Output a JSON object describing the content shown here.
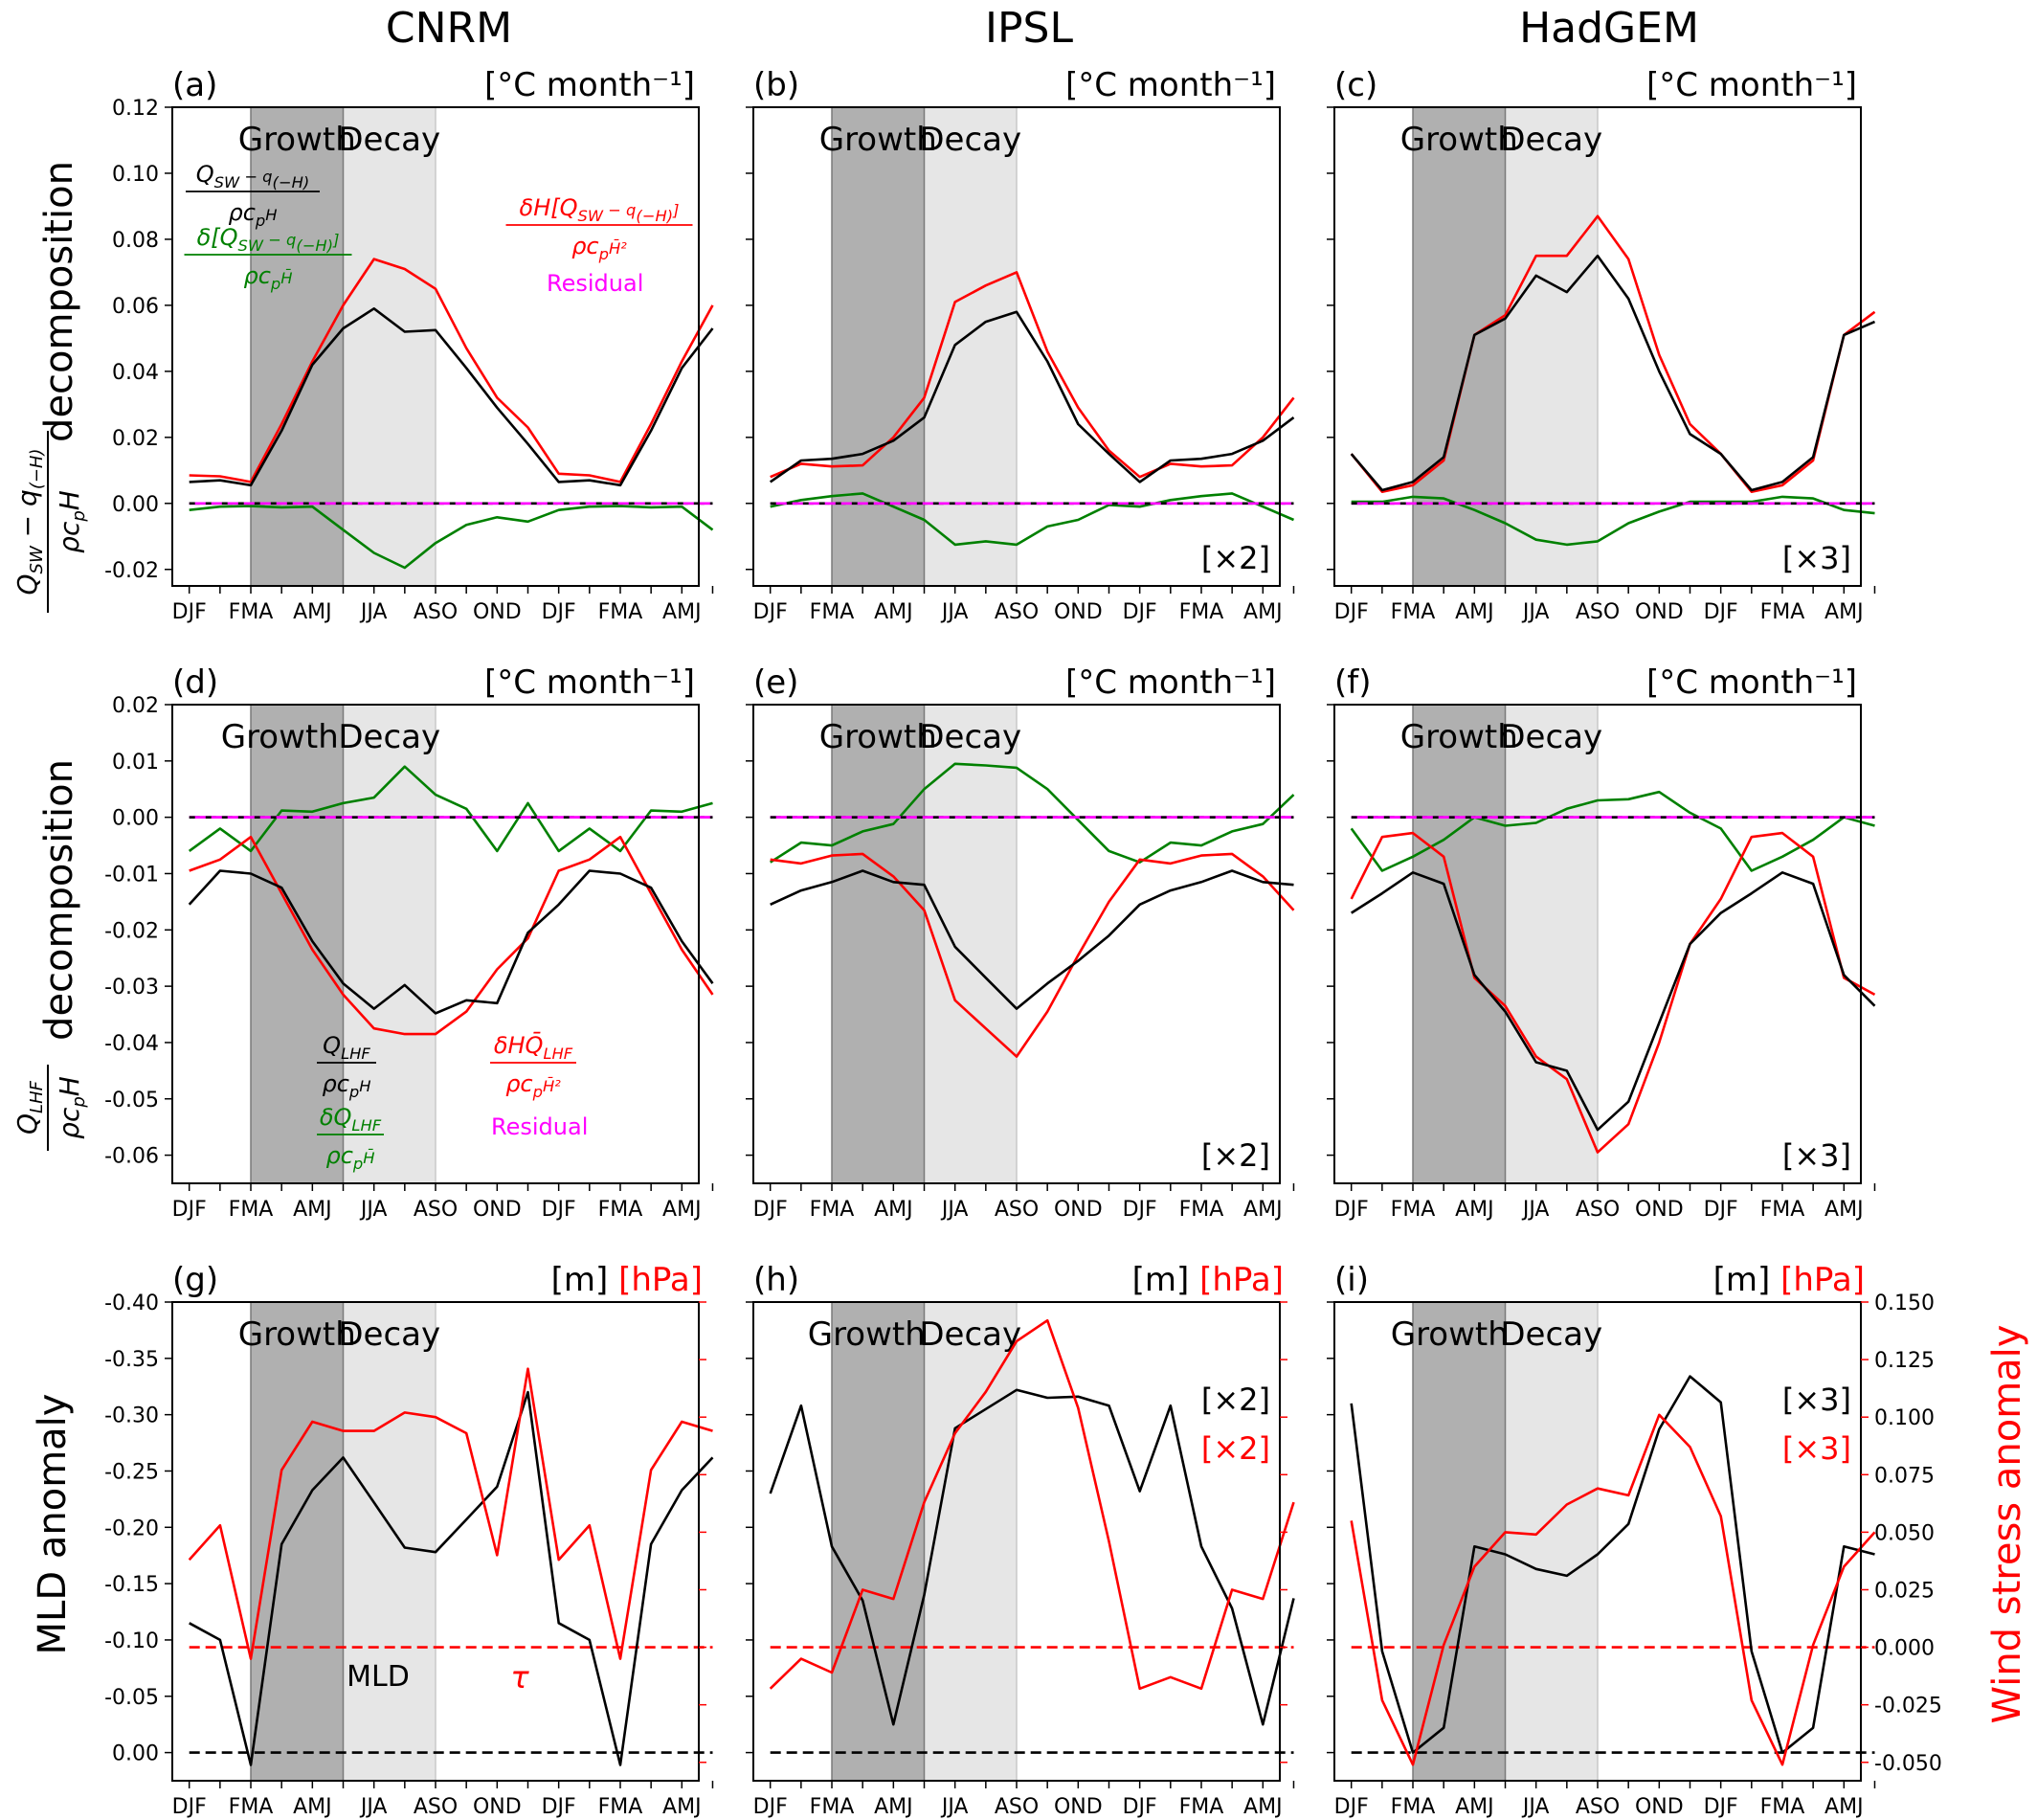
{
  "columns": [
    "CNRM",
    "IPSL",
    "HadGEM"
  ],
  "row_ylabels": {
    "row1": "decomposition",
    "row2": "decomposition",
    "row3_left": "MLD anomaly",
    "row3_right": "Wind stress anomaly"
  },
  "row_ylabel_formulas": {
    "row1": "(Q_SW − q_(−H)) / ρc_pH",
    "row2": "Q_LHF / ρc_pH"
  },
  "shading_labels": {
    "growth": "Growth",
    "decay": "Decay"
  },
  "units": {
    "rate": "[°C  month⁻¹]",
    "m": "[m]",
    "hpa": "[hPa]"
  },
  "colors": {
    "black": "#000000",
    "red": "#ff0000",
    "green": "#008000",
    "magenta": "#ff00ff",
    "growth_shade": "#b0b0b0",
    "decay_shade": "#e6e6e6"
  },
  "x_tick_labels": [
    "DJF",
    "FMA",
    "AMJ",
    "JJA",
    "ASO",
    "OND",
    "DJF",
    "FMA",
    "AMJ"
  ],
  "legends": {
    "a": {
      "black": "(Q_SW − q_(−H)) / ρc_pH",
      "green": "δ[Q_SW − q_(−H)] / ρc_pH̄",
      "red": "δH[Q_SW − q_(−H)] / ρc_pH̄²",
      "magenta": "Residual"
    },
    "d": {
      "black": "Q_LHF / ρc_pH",
      "green": "δQ_LHF / ρc_pH̄",
      "red": "δH Q̄_LHF / ρc_pH̄²",
      "magenta": "Residual"
    },
    "g": {
      "black": "MLD",
      "red": "τ"
    }
  },
  "chart_data": [
    {
      "id": "a",
      "label": "(a)",
      "unit_key": "rate",
      "type": "line",
      "multiplier": "",
      "ylim": [
        -0.025,
        0.12
      ],
      "yticks": [
        "-0.02",
        "0.00",
        "0.02",
        "0.04",
        "0.06",
        "0.08",
        "0.10",
        "0.12"
      ],
      "yticks_val": [
        -0.02,
        0,
        0.02,
        0.04,
        0.06,
        0.08,
        0.1,
        0.12
      ],
      "series": [
        {
          "name": "black",
          "values": [
            0.0065,
            0.007,
            0.0055,
            0.022,
            0.042,
            0.053,
            0.059,
            0.052,
            0.0525,
            0.041,
            0.029,
            0.018,
            0.0065,
            0.007,
            0.0055,
            0.022,
            0.041,
            0.053
          ]
        },
        {
          "name": "red",
          "values": [
            0.0085,
            0.0082,
            0.0065,
            0.024,
            0.043,
            0.06,
            0.074,
            0.071,
            0.065,
            0.047,
            0.032,
            0.023,
            0.009,
            0.0085,
            0.0065,
            0.024,
            0.043,
            0.06
          ]
        },
        {
          "name": "green",
          "values": [
            -0.002,
            -0.001,
            -0.0008,
            -0.0012,
            -0.001,
            -0.008,
            -0.015,
            -0.0195,
            -0.012,
            -0.0065,
            -0.0042,
            -0.0055,
            -0.002,
            -0.001,
            -0.0008,
            -0.0012,
            -0.001,
            -0.008
          ]
        },
        {
          "name": "magenta",
          "values": [
            0,
            0,
            0,
            0,
            0,
            0,
            0,
            0,
            0,
            0,
            0,
            0,
            0,
            0,
            0,
            0,
            0,
            0
          ]
        }
      ]
    },
    {
      "id": "b",
      "label": "(b)",
      "unit_key": "rate",
      "type": "line",
      "multiplier": "[×2]",
      "ylim": [
        -0.025,
        0.12
      ],
      "yticks": [],
      "yticks_val": [],
      "series": [
        {
          "name": "black",
          "values": [
            0.0065,
            0.013,
            0.0135,
            0.015,
            0.019,
            0.026,
            0.048,
            0.055,
            0.058,
            0.043,
            0.024,
            0.015,
            0.0065,
            0.013,
            0.0135,
            0.015,
            0.019,
            0.026
          ]
        },
        {
          "name": "red",
          "values": [
            0.008,
            0.012,
            0.0112,
            0.0115,
            0.02,
            0.032,
            0.061,
            0.066,
            0.07,
            0.046,
            0.029,
            0.016,
            0.008,
            0.012,
            0.0112,
            0.0115,
            0.02,
            0.032
          ]
        },
        {
          "name": "green",
          "values": [
            -0.001,
            0.001,
            0.0022,
            0.003,
            -0.001,
            -0.005,
            -0.0125,
            -0.0115,
            -0.0125,
            -0.007,
            -0.005,
            -0.0005,
            -0.001,
            0.001,
            0.0022,
            0.003,
            -0.001,
            -0.005
          ]
        },
        {
          "name": "magenta",
          "values": [
            0,
            0,
            0,
            0,
            0,
            0,
            0,
            0,
            0,
            0,
            0,
            0,
            0,
            0,
            0,
            0,
            0,
            0
          ]
        }
      ]
    },
    {
      "id": "c",
      "label": "(c)",
      "unit_key": "rate",
      "type": "line",
      "multiplier": "[×3]",
      "ylim": [
        -0.025,
        0.12
      ],
      "yticks": [],
      "yticks_val": [],
      "series": [
        {
          "name": "black",
          "values": [
            0.015,
            0.004,
            0.0065,
            0.014,
            0.051,
            0.056,
            0.069,
            0.064,
            0.075,
            0.062,
            0.04,
            0.021,
            0.015,
            0.004,
            0.0065,
            0.014,
            0.051,
            0.055
          ]
        },
        {
          "name": "red",
          "values": [
            0.015,
            0.0035,
            0.0055,
            0.013,
            0.051,
            0.057,
            0.075,
            0.075,
            0.087,
            0.074,
            0.045,
            0.024,
            0.015,
            0.0035,
            0.0055,
            0.013,
            0.051,
            0.058
          ]
        },
        {
          "name": "green",
          "values": [
            0.0005,
            0.0005,
            0.002,
            0.0015,
            -0.002,
            -0.006,
            -0.011,
            -0.0125,
            -0.0115,
            -0.006,
            -0.0025,
            0.0005,
            0.0005,
            0.0005,
            0.002,
            0.0015,
            -0.002,
            -0.003
          ]
        },
        {
          "name": "magenta",
          "values": [
            0,
            0,
            0,
            0,
            0,
            0,
            0,
            0,
            0,
            0,
            0,
            0,
            0,
            0,
            0,
            0,
            0,
            0
          ]
        }
      ]
    },
    {
      "id": "d",
      "label": "(d)",
      "unit_key": "rate",
      "type": "line",
      "multiplier": "",
      "ylim": [
        -0.065,
        0.02
      ],
      "yticks": [
        "-0.06",
        "-0.05",
        "-0.04",
        "-0.03",
        "-0.02",
        "-0.01",
        "0.00",
        "0.01",
        "0.02"
      ],
      "yticks_val": [
        -0.06,
        -0.05,
        -0.04,
        -0.03,
        -0.02,
        -0.01,
        0,
        0.01,
        0.02
      ],
      "series": [
        {
          "name": "black",
          "values": [
            -0.0155,
            -0.0095,
            -0.01,
            -0.0125,
            -0.022,
            -0.0295,
            -0.034,
            -0.0298,
            -0.0348,
            -0.0325,
            -0.033,
            -0.0205,
            -0.0155,
            -0.0095,
            -0.01,
            -0.0125,
            -0.022,
            -0.0295
          ]
        },
        {
          "name": "red",
          "values": [
            -0.0095,
            -0.0075,
            -0.0035,
            -0.0135,
            -0.0235,
            -0.0315,
            -0.0375,
            -0.0385,
            -0.0385,
            -0.0345,
            -0.027,
            -0.0215,
            -0.0095,
            -0.0075,
            -0.0035,
            -0.0135,
            -0.0235,
            -0.0315
          ]
        },
        {
          "name": "green",
          "values": [
            -0.006,
            -0.002,
            -0.006,
            0.0012,
            0.001,
            0.0025,
            0.0035,
            0.009,
            0.004,
            0.0015,
            -0.006,
            0.0025,
            -0.006,
            -0.002,
            -0.006,
            0.0012,
            0.001,
            0.0025
          ]
        },
        {
          "name": "magenta",
          "values": [
            0,
            0,
            0,
            0,
            0,
            0,
            0,
            0,
            0,
            0,
            0,
            0,
            0,
            0,
            0,
            0,
            0,
            0
          ]
        }
      ]
    },
    {
      "id": "e",
      "label": "(e)",
      "unit_key": "rate",
      "type": "line",
      "multiplier": "[×2]",
      "ylim": [
        -0.065,
        0.02
      ],
      "yticks": [],
      "yticks_val": [],
      "series": [
        {
          "name": "black",
          "values": [
            -0.0155,
            -0.013,
            -0.0115,
            -0.0095,
            -0.0115,
            -0.012,
            -0.023,
            -0.0285,
            -0.034,
            -0.0295,
            -0.0255,
            -0.021,
            -0.0155,
            -0.013,
            -0.0115,
            -0.0095,
            -0.0115,
            -0.012
          ]
        },
        {
          "name": "red",
          "values": [
            -0.0075,
            -0.0082,
            -0.0068,
            -0.0065,
            -0.0105,
            -0.0165,
            -0.0325,
            -0.0375,
            -0.0425,
            -0.0345,
            -0.0245,
            -0.015,
            -0.0075,
            -0.0082,
            -0.0068,
            -0.0065,
            -0.0105,
            -0.0165
          ]
        },
        {
          "name": "green",
          "values": [
            -0.008,
            -0.0045,
            -0.005,
            -0.0025,
            -0.0012,
            0.005,
            0.0095,
            0.0092,
            0.0088,
            0.005,
            -0.0005,
            -0.006,
            -0.008,
            -0.0045,
            -0.005,
            -0.0025,
            -0.0012,
            0.004
          ]
        },
        {
          "name": "magenta",
          "values": [
            0,
            0,
            0,
            0,
            0,
            0,
            0,
            0,
            0,
            0,
            0,
            0,
            0,
            0,
            0,
            0,
            0,
            0
          ]
        }
      ]
    },
    {
      "id": "f",
      "label": "(f)",
      "unit_key": "rate",
      "type": "line",
      "multiplier": "[×3]",
      "ylim": [
        -0.065,
        0.02
      ],
      "yticks": [],
      "yticks_val": [],
      "series": [
        {
          "name": "black",
          "values": [
            -0.017,
            -0.0135,
            -0.0098,
            -0.0118,
            -0.028,
            -0.0345,
            -0.0435,
            -0.045,
            -0.0555,
            -0.0505,
            -0.0365,
            -0.0225,
            -0.017,
            -0.0135,
            -0.0098,
            -0.0118,
            -0.028,
            -0.0335
          ]
        },
        {
          "name": "red",
          "values": [
            -0.0145,
            -0.0035,
            -0.0028,
            -0.007,
            -0.0285,
            -0.0335,
            -0.0425,
            -0.0465,
            -0.0595,
            -0.0545,
            -0.04,
            -0.0225,
            -0.0145,
            -0.0035,
            -0.0028,
            -0.007,
            -0.0285,
            -0.0315
          ]
        },
        {
          "name": "green",
          "values": [
            -0.002,
            -0.0095,
            -0.007,
            -0.004,
            0.0,
            -0.0015,
            -0.001,
            0.0015,
            0.003,
            0.0032,
            0.0045,
            0.0008,
            -0.002,
            -0.0095,
            -0.007,
            -0.004,
            0.0,
            -0.0015
          ]
        },
        {
          "name": "magenta",
          "values": [
            0,
            0,
            0,
            0,
            0,
            0,
            0,
            0,
            0,
            0,
            0,
            0,
            0,
            0,
            0,
            0,
            0,
            0
          ]
        }
      ]
    },
    {
      "id": "g",
      "label": "(g)",
      "unit_key": "mhpa",
      "type": "line",
      "multiplier": "",
      "multiplier2": "",
      "ylim": [
        0.025,
        -0.4
      ],
      "ylim_right": [
        -0.058,
        0.15
      ],
      "yticks": [
        "0.00",
        "-0.05",
        "-0.10",
        "-0.15",
        "-0.20",
        "-0.25",
        "-0.30",
        "-0.35",
        "-0.40"
      ],
      "yticks_val": [
        0,
        -0.05,
        -0.1,
        -0.15,
        -0.2,
        -0.25,
        -0.3,
        -0.35,
        -0.4
      ],
      "series": [
        {
          "name": "black",
          "values": [
            -0.115,
            -0.1,
            0.011,
            -0.185,
            -0.233,
            -0.262,
            -0.222,
            -0.182,
            -0.178,
            -0.207,
            -0.236,
            -0.32,
            -0.115,
            -0.1,
            0.011,
            -0.185,
            -0.233,
            -0.262
          ]
        },
        {
          "name": "red",
          "axis": "right",
          "values": [
            0.038,
            0.053,
            -0.005,
            0.077,
            0.098,
            0.094,
            0.094,
            0.102,
            0.1,
            0.093,
            0.04,
            0.121,
            0.038,
            0.053,
            -0.005,
            0.077,
            0.098,
            0.094
          ]
        },
        {
          "name": "black_dash",
          "values": [
            0,
            0,
            0,
            0,
            0,
            0,
            0,
            0,
            0,
            0,
            0,
            0,
            0,
            0,
            0,
            0,
            0,
            0
          ]
        },
        {
          "name": "red_dash",
          "axis": "right",
          "values": [
            0,
            0,
            0,
            0,
            0,
            0,
            0,
            0,
            0,
            0,
            0,
            0,
            0,
            0,
            0,
            0,
            0,
            0
          ]
        }
      ]
    },
    {
      "id": "h",
      "label": "(h)",
      "unit_key": "mhpa",
      "type": "line",
      "multiplier": "[×2]",
      "multiplier2": "[×2]",
      "ylim": [
        0.025,
        -0.4
      ],
      "ylim_right": [
        -0.058,
        0.15
      ],
      "yticks": [],
      "yticks_val": [],
      "series": [
        {
          "name": "black",
          "values": [
            -0.23,
            -0.308,
            -0.183,
            -0.135,
            -0.025,
            -0.14,
            -0.288,
            -0.305,
            -0.322,
            -0.315,
            -0.316,
            -0.308,
            -0.232,
            -0.308,
            -0.183,
            -0.128,
            -0.025,
            -0.137
          ]
        },
        {
          "name": "red",
          "axis": "right",
          "values": [
            -0.018,
            -0.005,
            -0.011,
            0.025,
            0.021,
            0.063,
            0.093,
            0.111,
            0.133,
            0.142,
            0.104,
            0.046,
            -0.018,
            -0.013,
            -0.018,
            0.025,
            0.021,
            0.063
          ]
        },
        {
          "name": "black_dash",
          "values": [
            0,
            0,
            0,
            0,
            0,
            0,
            0,
            0,
            0,
            0,
            0,
            0,
            0,
            0,
            0,
            0,
            0,
            0
          ]
        },
        {
          "name": "red_dash",
          "axis": "right",
          "values": [
            0,
            0,
            0,
            0,
            0,
            0,
            0,
            0,
            0,
            0,
            0,
            0,
            0,
            0,
            0,
            0,
            0,
            0
          ]
        }
      ]
    },
    {
      "id": "i",
      "label": "(i)",
      "unit_key": "mhpa",
      "type": "line",
      "multiplier": "[×3]",
      "multiplier2": "[×3]",
      "ylim": [
        0.025,
        -0.4
      ],
      "ylim_right": [
        -0.058,
        0.15
      ],
      "yticks_right": [
        "-0.050",
        "-0.025",
        "0.000",
        "0.025",
        "0.050",
        "0.075",
        "0.100",
        "0.125",
        "0.150"
      ],
      "yticks_right_val": [
        -0.05,
        -0.025,
        0,
        0.025,
        0.05,
        0.075,
        0.1,
        0.125,
        0.15
      ],
      "yticks": [],
      "yticks_val": [],
      "series": [
        {
          "name": "black",
          "values": [
            -0.31,
            -0.09,
            0.0,
            -0.022,
            -0.183,
            -0.176,
            -0.163,
            -0.157,
            -0.176,
            -0.203,
            -0.287,
            -0.334,
            -0.311,
            -0.09,
            0.0,
            -0.022,
            -0.183,
            -0.176
          ]
        },
        {
          "name": "red",
          "axis": "right",
          "values": [
            0.055,
            -0.023,
            -0.051,
            0.001,
            0.035,
            0.05,
            0.049,
            0.062,
            0.069,
            0.066,
            0.101,
            0.087,
            0.057,
            -0.023,
            -0.051,
            0.001,
            0.035,
            0.05
          ]
        },
        {
          "name": "black_dash",
          "values": [
            0,
            0,
            0,
            0,
            0,
            0,
            0,
            0,
            0,
            0,
            0,
            0,
            0,
            0,
            0,
            0,
            0,
            0
          ]
        },
        {
          "name": "red_dash",
          "axis": "right",
          "values": [
            0,
            0,
            0,
            0,
            0,
            0,
            0,
            0,
            0,
            0,
            0,
            0,
            0,
            0,
            0,
            0,
            0,
            0
          ]
        }
      ]
    }
  ]
}
